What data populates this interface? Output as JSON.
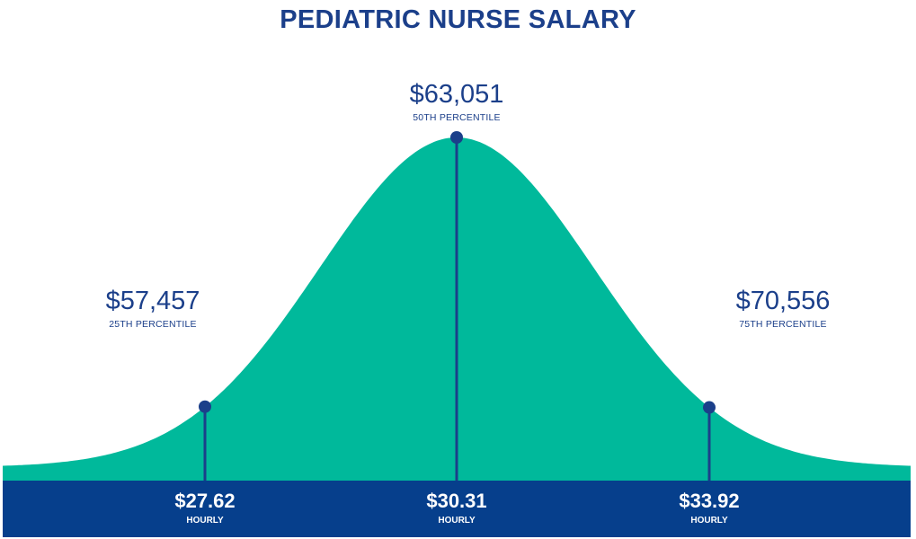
{
  "chart_data": {
    "type": "area",
    "title": "PEDIATRIC NURSE SALARY",
    "markers": [
      {
        "annual": "$57,457",
        "annual_value": 57457,
        "percentile_label": "25TH PERCENTILE",
        "hourly": "$27.62",
        "hourly_value": 27.62,
        "hourly_label": "HOURLY"
      },
      {
        "annual": "$63,051",
        "annual_value": 63051,
        "percentile_label": "50TH PERCENTILE",
        "hourly": "$30.31",
        "hourly_value": 30.31,
        "hourly_label": "HOURLY"
      },
      {
        "annual": "$70,556",
        "annual_value": 70556,
        "percentile_label": "75TH PERCENTILE",
        "hourly": "$33.92",
        "hourly_value": 33.92,
        "hourly_label": "HOURLY"
      }
    ],
    "colors": {
      "curve": "#00b99b",
      "band": "#063f8c",
      "line": "#1b3f8a",
      "text": "#1b3f8a"
    }
  }
}
